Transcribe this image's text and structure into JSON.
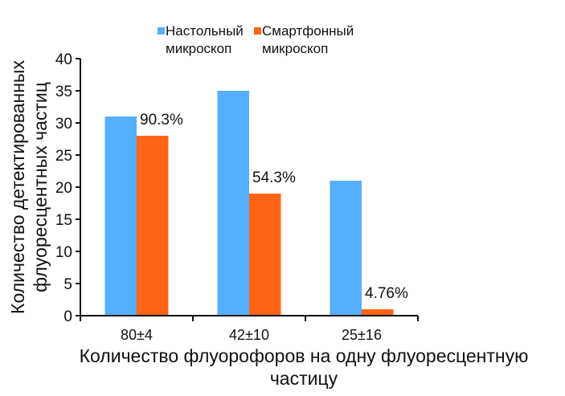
{
  "chart_data": {
    "type": "bar",
    "categories": [
      "80±4",
      "42±10",
      "25±16"
    ],
    "series": [
      {
        "name": "Настольный микроскоп",
        "name_lines": [
          "Настольный",
          "микроскоп"
        ],
        "color": "#55AEFF",
        "values": [
          31,
          35,
          21
        ]
      },
      {
        "name": "Смартфонный микроскоп",
        "name_lines": [
          "Смартфонный",
          "микроскоп"
        ],
        "color": "#FF6514",
        "values": [
          28,
          19,
          1
        ]
      }
    ],
    "data_labels": [
      "90.3%",
      "54.3%",
      "4.76%"
    ],
    "xlabel": "Количество флуорофоров на одну флуоресцентную частицу",
    "xlabel_lines": [
      "Количество флуорофоров на одну флуоресцентную",
      "частицу"
    ],
    "ylabel": "Количество детектированных флуоресцентных частиц",
    "ylabel_lines": [
      "Количество детектированных",
      "флуоресцентных частиц"
    ],
    "ylim": [
      0,
      40
    ],
    "yticks": [
      0,
      5,
      10,
      15,
      20,
      25,
      30,
      35,
      40
    ],
    "grid": false,
    "legend": "top"
  }
}
